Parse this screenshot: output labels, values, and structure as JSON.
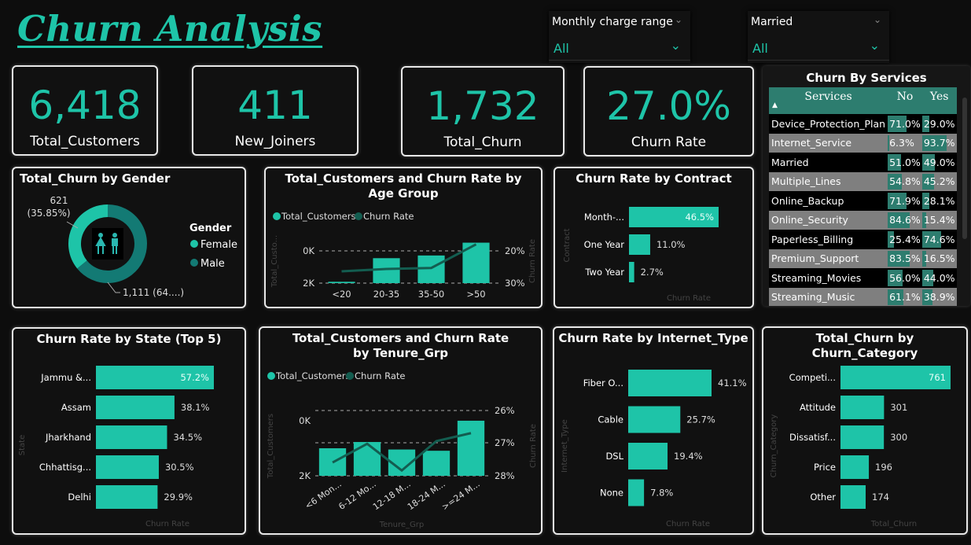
{
  "title": "Churn Analysis",
  "slicers": [
    {
      "label": "Monthly charge range",
      "value": "All"
    },
    {
      "label": "Married",
      "value": "All"
    }
  ],
  "kpis": [
    {
      "value": "6,418",
      "label": "Total_Customers"
    },
    {
      "value": "411",
      "label": "New_Joiners"
    },
    {
      "value": "1,732",
      "label": "Total_Churn"
    },
    {
      "value": "27.0%",
      "label": "Churn Rate"
    }
  ],
  "services": {
    "title": "Churn By Services",
    "headers": [
      "Services",
      "No",
      "Yes"
    ],
    "rows": [
      {
        "name": "Device_Protection_Plan",
        "no": "71.0%",
        "yes": "29.0%",
        "no_v": 71.0,
        "yes_v": 29.0
      },
      {
        "name": "Internet_Service",
        "no": "6.3%",
        "yes": "93.7%",
        "no_v": 6.3,
        "yes_v": 93.7
      },
      {
        "name": "Married",
        "no": "51.0%",
        "yes": "49.0%",
        "no_v": 51.0,
        "yes_v": 49.0
      },
      {
        "name": "Multiple_Lines",
        "no": "54.8%",
        "yes": "45.2%",
        "no_v": 54.8,
        "yes_v": 45.2
      },
      {
        "name": "Online_Backup",
        "no": "71.9%",
        "yes": "28.1%",
        "no_v": 71.9,
        "yes_v": 28.1
      },
      {
        "name": "Online_Security",
        "no": "84.6%",
        "yes": "15.4%",
        "no_v": 84.6,
        "yes_v": 15.4
      },
      {
        "name": "Paperless_Billing",
        "no": "25.4%",
        "yes": "74.6%",
        "no_v": 25.4,
        "yes_v": 74.6
      },
      {
        "name": "Premium_Support",
        "no": "83.5%",
        "yes": "16.5%",
        "no_v": 83.5,
        "yes_v": 16.5
      },
      {
        "name": "Streaming_Movies",
        "no": "56.0%",
        "yes": "44.0%",
        "no_v": 56.0,
        "yes_v": 44.0
      },
      {
        "name": "Streaming_Music",
        "no": "61.1%",
        "yes": "38.9%",
        "no_v": 61.1,
        "yes_v": 38.9
      }
    ]
  },
  "chart_data": [
    {
      "id": "gender",
      "type": "pie",
      "title": "Total_Churn by Gender",
      "legend_title": "Gender",
      "categories": [
        "Female",
        "Male"
      ],
      "values": [
        621,
        1111
      ],
      "labels": [
        "621 (35.85%)",
        "1,111 (64....)"
      ],
      "colors": [
        "#1ec4a8",
        "#137a74"
      ]
    },
    {
      "id": "age",
      "type": "bar",
      "title": "Total_Customers and Churn Rate by Age Group",
      "legend": [
        "Total_Customers",
        "Churn Rate"
      ],
      "categories": [
        "<20",
        "20-35",
        "35-50",
        ">50"
      ],
      "series": [
        {
          "name": "Total_Customers",
          "values": [
            100,
            1850,
            2050,
            3000
          ]
        },
        {
          "name": "Churn Rate",
          "values": [
            22.5,
            23.2,
            23.5,
            30.5
          ]
        }
      ],
      "ylabel": "Total_Custo...",
      "y2label": "Churn Rate",
      "yticks": [
        "0K",
        "2K"
      ],
      "y2ticks": [
        "20%",
        "30%"
      ],
      "ylim": [
        0,
        3500
      ],
      "y2lim": [
        19,
        33
      ]
    },
    {
      "id": "contract",
      "type": "bar",
      "title": "Churn Rate by Contract",
      "categories": [
        "Month-...",
        "One Year",
        "Two Year"
      ],
      "values": [
        46.5,
        11.0,
        2.7
      ],
      "value_labels": [
        "46.5%",
        "11.0%",
        "2.7%"
      ],
      "xlabel": "Churn Rate",
      "ylabel": "Contract"
    },
    {
      "id": "state",
      "type": "bar",
      "title": "Churn Rate by State (Top 5)",
      "categories": [
        "Jammu &...",
        "Assam",
        "Jharkhand",
        "Chhattisg...",
        "Delhi"
      ],
      "values": [
        57.2,
        38.1,
        34.5,
        30.5,
        29.9
      ],
      "value_labels": [
        "57.2%",
        "38.1%",
        "34.5%",
        "30.5%",
        "29.9%"
      ],
      "xlabel": "Churn Rate",
      "ylabel": "State"
    },
    {
      "id": "tenure",
      "type": "bar",
      "title": "Total_Customers and Churn Rate by Tenure_Grp",
      "legend": [
        "Total_Customers",
        "Churn Rate"
      ],
      "categories": [
        "<6 Mon...",
        "6-12 Mo...",
        "12-18 M...",
        "18-24 M...",
        ">=24 M..."
      ],
      "series": [
        {
          "name": "Total_Customers",
          "values": [
            1100,
            1350,
            1050,
            1000,
            2200
          ]
        },
        {
          "name": "Churn Rate",
          "values": [
            26.4,
            27.1,
            26.1,
            27.2,
            27.5
          ]
        }
      ],
      "xlabel": "Tenure_Grp",
      "ylabel": "Total_Customers",
      "y2label": "Churn Rate",
      "yticks": [
        "0K",
        "2K"
      ],
      "y2ticks": [
        "26%",
        "27%",
        "28%"
      ],
      "ylim": [
        0,
        2450
      ],
      "y2lim": [
        25.9,
        28.2
      ]
    },
    {
      "id": "internet",
      "type": "bar",
      "title": "Churn Rate by Internet_Type",
      "categories": [
        "Fiber O...",
        "Cable",
        "DSL",
        "None"
      ],
      "values": [
        41.1,
        25.7,
        19.4,
        7.8
      ],
      "value_labels": [
        "41.1%",
        "25.7%",
        "19.4%",
        "7.8%"
      ],
      "xlabel": "Churn Rate",
      "ylabel": "Internet_Type"
    },
    {
      "id": "category",
      "type": "bar",
      "title": "Total_Churn by Churn_Category",
      "categories": [
        "Competi...",
        "Attitude",
        "Dissatisf...",
        "Price",
        "Other"
      ],
      "values": [
        761,
        301,
        300,
        196,
        174
      ],
      "value_labels": [
        "761",
        "301",
        "300",
        "196",
        "174"
      ],
      "xlabel": "Total_Churn",
      "ylabel": "Churn_Category"
    }
  ],
  "colors": {
    "accent": "#1ec4a8",
    "line": "#135d50",
    "dark_teal": "#137a74"
  }
}
